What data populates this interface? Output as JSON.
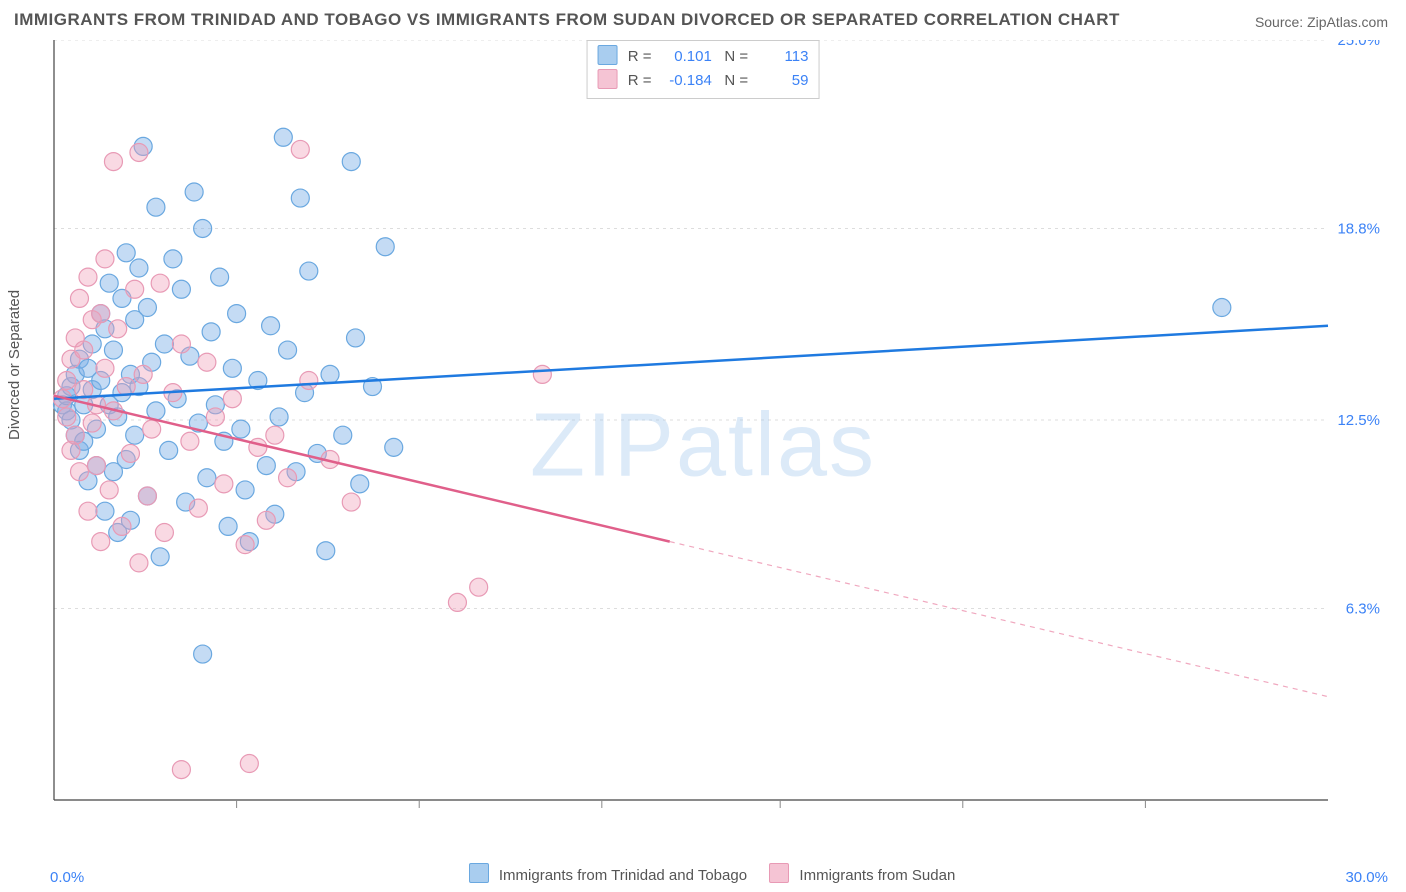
{
  "title": "IMMIGRANTS FROM TRINIDAD AND TOBAGO VS IMMIGRANTS FROM SUDAN DIVORCED OR SEPARATED CORRELATION CHART",
  "source_label": "Source: ZipAtlas.com",
  "watermark": "ZIPatlas",
  "ylabel": "Divorced or Separated",
  "chart": {
    "type": "scatter",
    "xlim": [
      0,
      30
    ],
    "ylim": [
      0,
      25
    ],
    "ytick_labels": [
      "25.0%",
      "18.8%",
      "12.5%",
      "6.3%"
    ],
    "ytick_values": [
      25.0,
      18.8,
      12.5,
      6.3
    ],
    "x_min_label": "0.0%",
    "x_max_label": "30.0%",
    "x_minor_ticks": [
      4.3,
      8.6,
      12.9,
      17.1,
      21.4,
      25.7
    ],
    "background_color": "#ffffff",
    "grid_color": "#dddddd",
    "axis_color": "#444444",
    "tick_label_color": "#3b82f6",
    "tick_label_fontsize": 15,
    "marker_radius": 9,
    "marker_stroke_width": 1.2,
    "trend_line_width": 2.5
  },
  "series": [
    {
      "name": "Immigrants from Trinidad and Tobago",
      "color_fill": "rgba(125,175,230,0.45)",
      "color_stroke": "#6aa8e0",
      "swatch_fill": "#a9cdef",
      "swatch_stroke": "#6aa8e0",
      "r_value": "0.101",
      "n_value": "113",
      "trend": {
        "x1": 0.0,
        "y1": 13.2,
        "x2": 30.0,
        "y2": 15.6,
        "color": "#1f7ae0"
      },
      "points": [
        [
          0.2,
          13.0
        ],
        [
          0.3,
          12.8
        ],
        [
          0.3,
          13.3
        ],
        [
          0.4,
          12.5
        ],
        [
          0.4,
          13.6
        ],
        [
          0.5,
          12.0
        ],
        [
          0.5,
          14.0
        ],
        [
          0.6,
          11.5
        ],
        [
          0.6,
          14.5
        ],
        [
          0.7,
          13.0
        ],
        [
          0.7,
          11.8
        ],
        [
          0.8,
          14.2
        ],
        [
          0.8,
          10.5
        ],
        [
          0.9,
          13.5
        ],
        [
          0.9,
          15.0
        ],
        [
          1.0,
          12.2
        ],
        [
          1.0,
          11.0
        ],
        [
          1.1,
          16.0
        ],
        [
          1.1,
          13.8
        ],
        [
          1.2,
          9.5
        ],
        [
          1.2,
          15.5
        ],
        [
          1.3,
          13.0
        ],
        [
          1.3,
          17.0
        ],
        [
          1.4,
          10.8
        ],
        [
          1.4,
          14.8
        ],
        [
          1.5,
          12.6
        ],
        [
          1.5,
          8.8
        ],
        [
          1.6,
          16.5
        ],
        [
          1.6,
          13.4
        ],
        [
          1.7,
          18.0
        ],
        [
          1.7,
          11.2
        ],
        [
          1.8,
          14.0
        ],
        [
          1.8,
          9.2
        ],
        [
          1.9,
          15.8
        ],
        [
          1.9,
          12.0
        ],
        [
          2.0,
          17.5
        ],
        [
          2.0,
          13.6
        ],
        [
          2.1,
          21.5
        ],
        [
          2.2,
          10.0
        ],
        [
          2.2,
          16.2
        ],
        [
          2.3,
          14.4
        ],
        [
          2.4,
          19.5
        ],
        [
          2.4,
          12.8
        ],
        [
          2.5,
          8.0
        ],
        [
          2.6,
          15.0
        ],
        [
          2.7,
          11.5
        ],
        [
          2.8,
          17.8
        ],
        [
          2.9,
          13.2
        ],
        [
          3.0,
          16.8
        ],
        [
          3.1,
          9.8
        ],
        [
          3.2,
          14.6
        ],
        [
          3.3,
          20.0
        ],
        [
          3.4,
          12.4
        ],
        [
          3.5,
          18.8
        ],
        [
          3.5,
          4.8
        ],
        [
          3.6,
          10.6
        ],
        [
          3.7,
          15.4
        ],
        [
          3.8,
          13.0
        ],
        [
          3.9,
          17.2
        ],
        [
          4.0,
          11.8
        ],
        [
          4.1,
          9.0
        ],
        [
          4.2,
          14.2
        ],
        [
          4.3,
          16.0
        ],
        [
          4.4,
          12.2
        ],
        [
          4.5,
          10.2
        ],
        [
          4.6,
          8.5
        ],
        [
          4.8,
          13.8
        ],
        [
          5.0,
          11.0
        ],
        [
          5.1,
          15.6
        ],
        [
          5.2,
          9.4
        ],
        [
          5.3,
          12.6
        ],
        [
          5.4,
          21.8
        ],
        [
          5.5,
          14.8
        ],
        [
          5.7,
          10.8
        ],
        [
          5.8,
          19.8
        ],
        [
          5.9,
          13.4
        ],
        [
          6.0,
          17.4
        ],
        [
          6.2,
          11.4
        ],
        [
          6.4,
          8.2
        ],
        [
          6.5,
          14.0
        ],
        [
          6.8,
          12.0
        ],
        [
          7.0,
          21.0
        ],
        [
          7.1,
          15.2
        ],
        [
          7.2,
          10.4
        ],
        [
          7.5,
          13.6
        ],
        [
          7.8,
          18.2
        ],
        [
          8.0,
          11.6
        ],
        [
          27.5,
          16.2
        ]
      ]
    },
    {
      "name": "Immigrants from Sudan",
      "color_fill": "rgba(240,160,185,0.40)",
      "color_stroke": "#e89ab5",
      "swatch_fill": "#f5c4d4",
      "swatch_stroke": "#e89ab5",
      "r_value": "-0.184",
      "n_value": "59",
      "trend": {
        "x1": 0.0,
        "y1": 13.3,
        "x2": 14.5,
        "y2": 8.5,
        "color": "#e05f8a"
      },
      "trend_extrapolate": {
        "x1": 14.5,
        "y1": 8.5,
        "x2": 30.0,
        "y2": 3.4,
        "color": "#f0a8bf"
      },
      "points": [
        [
          0.2,
          13.2
        ],
        [
          0.3,
          12.6
        ],
        [
          0.3,
          13.8
        ],
        [
          0.4,
          11.5
        ],
        [
          0.4,
          14.5
        ],
        [
          0.5,
          12.0
        ],
        [
          0.5,
          15.2
        ],
        [
          0.6,
          16.5
        ],
        [
          0.6,
          10.8
        ],
        [
          0.7,
          13.5
        ],
        [
          0.7,
          14.8
        ],
        [
          0.8,
          9.5
        ],
        [
          0.8,
          17.2
        ],
        [
          0.9,
          12.4
        ],
        [
          0.9,
          15.8
        ],
        [
          1.0,
          11.0
        ],
        [
          1.0,
          13.0
        ],
        [
          1.1,
          16.0
        ],
        [
          1.1,
          8.5
        ],
        [
          1.2,
          14.2
        ],
        [
          1.2,
          17.8
        ],
        [
          1.3,
          10.2
        ],
        [
          1.4,
          12.8
        ],
        [
          1.4,
          21.0
        ],
        [
          1.5,
          15.5
        ],
        [
          1.6,
          9.0
        ],
        [
          1.7,
          13.6
        ],
        [
          1.8,
          11.4
        ],
        [
          1.9,
          16.8
        ],
        [
          2.0,
          21.3
        ],
        [
          2.0,
          7.8
        ],
        [
          2.1,
          14.0
        ],
        [
          2.2,
          10.0
        ],
        [
          2.3,
          12.2
        ],
        [
          2.5,
          17.0
        ],
        [
          2.6,
          8.8
        ],
        [
          2.8,
          13.4
        ],
        [
          3.0,
          15.0
        ],
        [
          3.0,
          1.0
        ],
        [
          3.2,
          11.8
        ],
        [
          3.4,
          9.6
        ],
        [
          3.6,
          14.4
        ],
        [
          3.8,
          12.6
        ],
        [
          4.0,
          10.4
        ],
        [
          4.2,
          13.2
        ],
        [
          4.5,
          8.4
        ],
        [
          4.6,
          1.2
        ],
        [
          4.8,
          11.6
        ],
        [
          5.0,
          9.2
        ],
        [
          5.2,
          12.0
        ],
        [
          5.5,
          10.6
        ],
        [
          5.8,
          21.4
        ],
        [
          6.0,
          13.8
        ],
        [
          6.5,
          11.2
        ],
        [
          7.0,
          9.8
        ],
        [
          9.5,
          6.5
        ],
        [
          10.0,
          7.0
        ],
        [
          11.5,
          14.0
        ]
      ]
    }
  ],
  "top_legend_labels": {
    "r": "R =",
    "n": "N ="
  },
  "bottom_legend": {
    "series1_label": "Immigrants from Trinidad and Tobago",
    "series2_label": "Immigrants from Sudan"
  }
}
